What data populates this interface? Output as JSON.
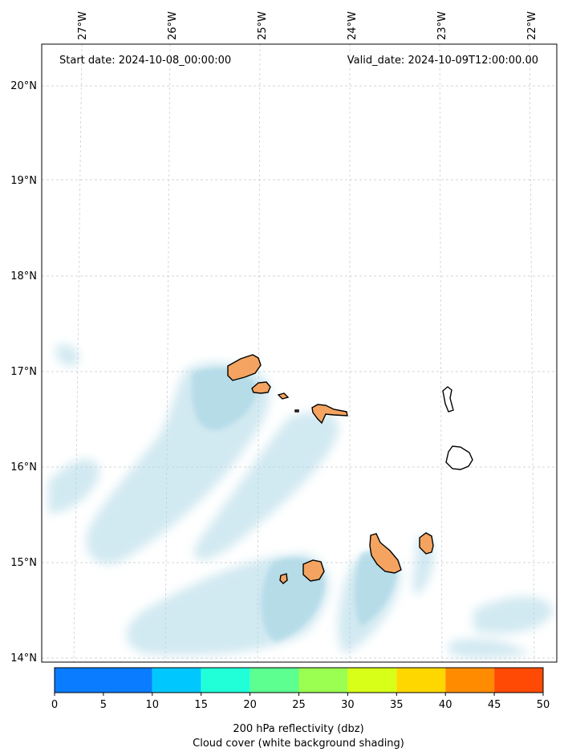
{
  "header": {
    "start_date": "Start date: 2024-10-08_00:00:00",
    "valid_date": "Valid_date: 2024-10-09T12:00:00.00"
  },
  "map": {
    "lon_labels": [
      "27°W",
      "26°W",
      "25°W",
      "24°W",
      "23°W",
      "22°W"
    ],
    "lat_labels": [
      "20°N",
      "19°N",
      "18°N",
      "17°N",
      "16°N",
      "15°N",
      "14°N"
    ],
    "land_color": "#f4a460",
    "cloud_color": "#add8e6"
  },
  "colorbar": {
    "ticks": [
      "0",
      "5",
      "10",
      "15",
      "20",
      "25",
      "30",
      "35",
      "40",
      "45",
      "50"
    ],
    "colors": [
      "#0a7cff",
      "#00c8ff",
      "#20ffd8",
      "#5cff90",
      "#9aff50",
      "#d8ff18",
      "#ffd700",
      "#ff8c00",
      "#ff4a05"
    ],
    "label_line1": "200 hPa reflectivity (dbz)",
    "label_line2": "Cloud cover (white background shading)"
  }
}
